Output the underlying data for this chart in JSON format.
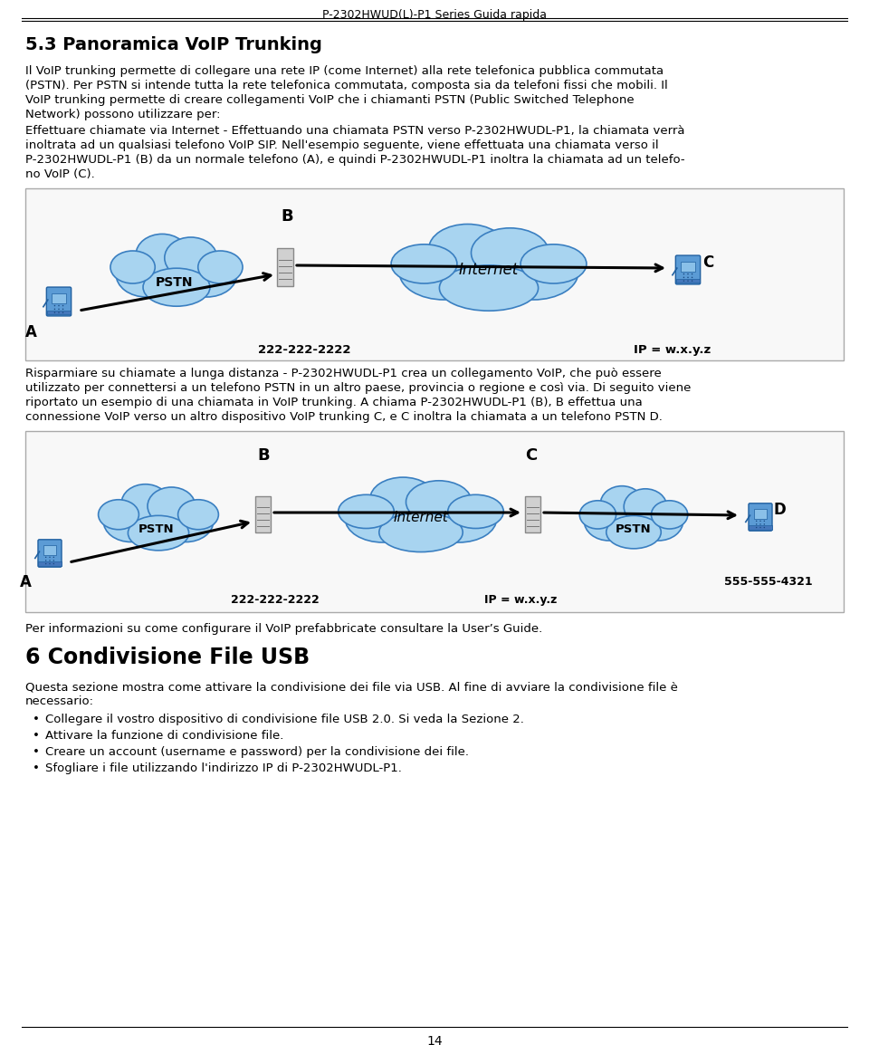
{
  "page_title": "P-2302HWUD(L)-P1 Series Guida rapida",
  "section_title": "5.3 Panoramica VoIP Trunking",
  "para1_lines": [
    "Il VoIP trunking permette di collegare una rete IP (come Internet) alla rete telefonica pubblica commutata",
    "(PSTN). Per PSTN si intende tutta la rete telefonica commutata, composta sia da telefoni fissi che mobili. Il",
    "VoIP trunking permette di creare collegamenti VoIP che i chiamanti PSTN (Public Switched Telephone",
    "Network) possono utilizzare per:"
  ],
  "para2_lines": [
    "Effettuare chiamate via Internet - Effettuando una chiamata PSTN verso P-2302HWUDL-P1, la chiamata verrà",
    "inoltrata ad un qualsiasi telefono VoIP SIP. Nell'esempio seguente, viene effettuata una chiamata verso il",
    "P-2302HWUDL-P1 (B) da un normale telefono (A), e quindi P-2302HWUDL-P1 inoltra la chiamata ad un telefo-",
    "no VoIP (C)."
  ],
  "caption1_lines": [
    "Risparmiare su chiamate a lunga distanza - P-2302HWUDL-P1 crea un collegamento VoIP, che può essere",
    "utilizzato per connettersi a un telefono PSTN in un altro paese, provincia o regione e così via. Di seguito viene",
    "riportato un esempio di una chiamata in VoIP trunking. A chiama P-2302HWUDL-P1 (B), B effettua una",
    "connessione VoIP verso un altro dispositivo VoIP trunking C, e C inoltra la chiamata a un telefono PSTN D."
  ],
  "footer_text": "Per informazioni su come configurare il VoIP prefabbricate consultare la User’s Guide.",
  "section2_title": "6 Condivisione File USB",
  "section2_body_lines": [
    "Questa sezione mostra come attivare la condivisione dei file via USB. Al fine di avviare la condivisione file è",
    "necessario:"
  ],
  "bullet_points": [
    "Collegare il vostro dispositivo di condivisione file USB 2.0. Si veda la Sezione 2.",
    "Attivare la funzione di condivisione file.",
    "Creare un account (username e password) per la condivisione dei file.",
    "Sfogliare i file utilizzando l'indirizzo IP di P-2302HWUDL-P1."
  ],
  "page_number": "14",
  "bg_color": "#ffffff",
  "text_color": "#000000",
  "cloud_fill": "#a8d4f0",
  "cloud_edge": "#3a7fc1",
  "box_edge": "#aaaaaa",
  "box_fill": "#f8f8f8"
}
